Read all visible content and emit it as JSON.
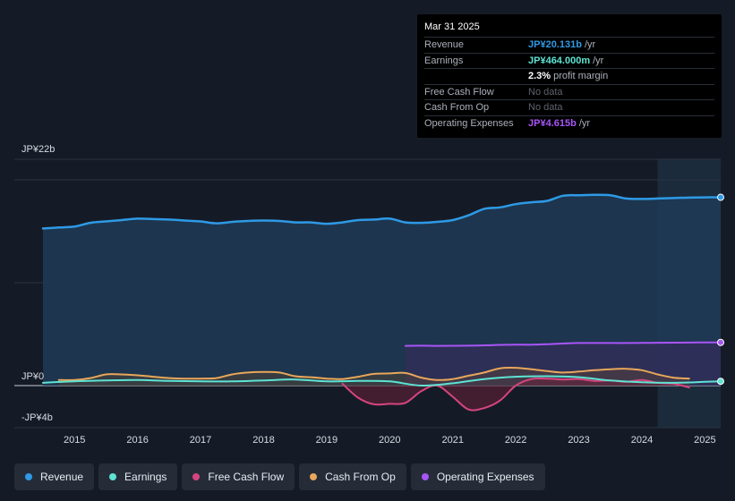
{
  "tooltip": {
    "date": "Mar 31 2025",
    "rows": [
      {
        "label": "Revenue",
        "value": "JP¥20.131b",
        "suffix": "/yr",
        "color": "#2e9ae6"
      },
      {
        "label": "Earnings",
        "value": "JP¥464.000m",
        "suffix": "/yr",
        "color": "#5ee3d3"
      },
      {
        "label": "",
        "value": "2.3%",
        "suffix": "profit margin",
        "color": "#ffffff"
      },
      {
        "label": "Free Cash Flow",
        "value": "No data",
        "suffix": "",
        "color": ""
      },
      {
        "label": "Cash From Op",
        "value": "No data",
        "suffix": "",
        "color": ""
      },
      {
        "label": "Operating Expenses",
        "value": "JP¥4.615b",
        "suffix": "/yr",
        "color": "#a855f7"
      }
    ]
  },
  "legend": [
    {
      "label": "Revenue",
      "color": "#2e9ae6"
    },
    {
      "label": "Earnings",
      "color": "#5ee3d3"
    },
    {
      "label": "Free Cash Flow",
      "color": "#d6457f"
    },
    {
      "label": "Cash From Op",
      "color": "#e8a75a"
    },
    {
      "label": "Operating Expenses",
      "color": "#a855f7"
    }
  ],
  "chart_data": {
    "type": "line",
    "title": "",
    "ylabel": "",
    "xlabel": "",
    "ylim": [
      -4,
      22
    ],
    "y_tick_labels": [
      {
        "value": 22,
        "label": "JP¥22b"
      },
      {
        "value": 0,
        "label": "JP¥0"
      },
      {
        "value": -4,
        "label": "-JP¥4b"
      }
    ],
    "x_tick_labels": [
      "2015",
      "2016",
      "2017",
      "2018",
      "2019",
      "2020",
      "2021",
      "2022",
      "2023",
      "2024",
      "2025"
    ],
    "x_tick_values": [
      2015,
      2016,
      2017,
      2018,
      2019,
      2020,
      2021,
      2022,
      2023,
      2024,
      2025
    ],
    "xlim": [
      2014.0,
      2025.25
    ],
    "forecast_start": 2024.25,
    "series": [
      {
        "name": "Revenue",
        "color": "#2e9ae6",
        "fill": true,
        "x": [
          2014.5,
          2014.75,
          2015.0,
          2015.25,
          2015.5,
          2015.75,
          2016.0,
          2016.25,
          2016.5,
          2016.75,
          2017.0,
          2017.25,
          2017.5,
          2017.75,
          2018.0,
          2018.25,
          2018.5,
          2018.75,
          2019.0,
          2019.25,
          2019.5,
          2019.75,
          2020.0,
          2020.25,
          2020.5,
          2020.75,
          2021.0,
          2021.25,
          2021.5,
          2021.75,
          2022.0,
          2022.25,
          2022.5,
          2022.75,
          2023.0,
          2023.25,
          2023.5,
          2023.75,
          2024.0,
          2024.25,
          2024.5,
          2024.75,
          2025.0,
          2025.25
        ],
        "values": [
          16.8,
          16.9,
          17.0,
          17.4,
          17.55,
          17.7,
          17.85,
          17.8,
          17.75,
          17.65,
          17.55,
          17.35,
          17.5,
          17.6,
          17.65,
          17.6,
          17.45,
          17.45,
          17.3,
          17.45,
          17.7,
          17.75,
          17.85,
          17.45,
          17.4,
          17.5,
          17.7,
          18.2,
          18.9,
          19.05,
          19.4,
          19.6,
          19.75,
          20.3,
          20.35,
          20.4,
          20.35,
          20.0,
          19.95,
          20.0,
          20.05,
          20.1,
          20.13,
          20.13
        ]
      },
      {
        "name": "Earnings",
        "color": "#5ee3d3",
        "fill": false,
        "x": [
          2014.5,
          2015.0,
          2015.5,
          2016.0,
          2016.5,
          2017.0,
          2017.5,
          2018.0,
          2018.5,
          2019.0,
          2019.5,
          2020.0,
          2020.5,
          2021.0,
          2021.5,
          2022.0,
          2022.5,
          2023.0,
          2023.5,
          2024.0,
          2024.5,
          2025.0,
          2025.25
        ],
        "values": [
          0.3,
          0.45,
          0.55,
          0.6,
          0.5,
          0.45,
          0.45,
          0.55,
          0.65,
          0.45,
          0.5,
          0.45,
          0.0,
          0.25,
          0.7,
          0.95,
          1.0,
          0.9,
          0.55,
          0.35,
          0.3,
          0.4,
          0.46
        ]
      },
      {
        "name": "Free Cash Flow",
        "color": "#d6457f",
        "fill": true,
        "x": [
          2019.25,
          2019.5,
          2019.75,
          2020.0,
          2020.25,
          2020.5,
          2020.75,
          2021.0,
          2021.25,
          2021.5,
          2021.75,
          2022.0,
          2022.25,
          2022.5,
          2022.75,
          2023.0,
          2023.25,
          2023.5,
          2023.75,
          2024.0,
          2024.25,
          2024.5,
          2024.75
        ],
        "values": [
          0.2,
          -1.3,
          -2.0,
          -1.95,
          -1.85,
          -0.6,
          0.0,
          -1.2,
          -2.55,
          -2.4,
          -1.6,
          0.0,
          0.7,
          0.75,
          0.65,
          0.7,
          0.5,
          0.55,
          0.4,
          0.6,
          0.3,
          0.2,
          -0.2
        ]
      },
      {
        "name": "Cash From Op",
        "color": "#e8a75a",
        "fill": true,
        "x": [
          2014.75,
          2015.0,
          2015.25,
          2015.5,
          2015.75,
          2016.0,
          2016.25,
          2016.5,
          2016.75,
          2017.0,
          2017.25,
          2017.5,
          2017.75,
          2018.0,
          2018.25,
          2018.5,
          2018.75,
          2019.0,
          2019.25,
          2019.5,
          2019.75,
          2020.0,
          2020.25,
          2020.5,
          2020.75,
          2021.0,
          2021.25,
          2021.5,
          2021.75,
          2022.0,
          2022.25,
          2022.5,
          2022.75,
          2023.0,
          2023.25,
          2023.5,
          2023.75,
          2024.0,
          2024.25,
          2024.5,
          2024.75
        ],
        "values": [
          0.6,
          0.6,
          0.8,
          1.2,
          1.2,
          1.1,
          0.95,
          0.8,
          0.75,
          0.75,
          0.8,
          1.2,
          1.4,
          1.45,
          1.4,
          1.0,
          0.9,
          0.75,
          0.7,
          0.95,
          1.25,
          1.3,
          1.35,
          0.85,
          0.6,
          0.7,
          1.05,
          1.4,
          1.85,
          1.9,
          1.75,
          1.55,
          1.4,
          1.5,
          1.65,
          1.75,
          1.8,
          1.65,
          1.2,
          0.85,
          0.75
        ]
      },
      {
        "name": "Operating Expenses",
        "color": "#a855f7",
        "fill": true,
        "x": [
          2020.25,
          2020.5,
          2020.75,
          2021.0,
          2021.25,
          2021.5,
          2021.75,
          2022.0,
          2022.25,
          2022.5,
          2022.75,
          2023.0,
          2023.25,
          2023.5,
          2023.75,
          2024.0,
          2024.25,
          2024.5,
          2024.75,
          2025.0,
          2025.25
        ],
        "values": [
          4.25,
          4.27,
          4.25,
          4.26,
          4.27,
          4.3,
          4.35,
          4.38,
          4.37,
          4.42,
          4.5,
          4.55,
          4.55,
          4.55,
          4.55,
          4.57,
          4.58,
          4.59,
          4.6,
          4.62,
          4.615
        ]
      }
    ]
  }
}
